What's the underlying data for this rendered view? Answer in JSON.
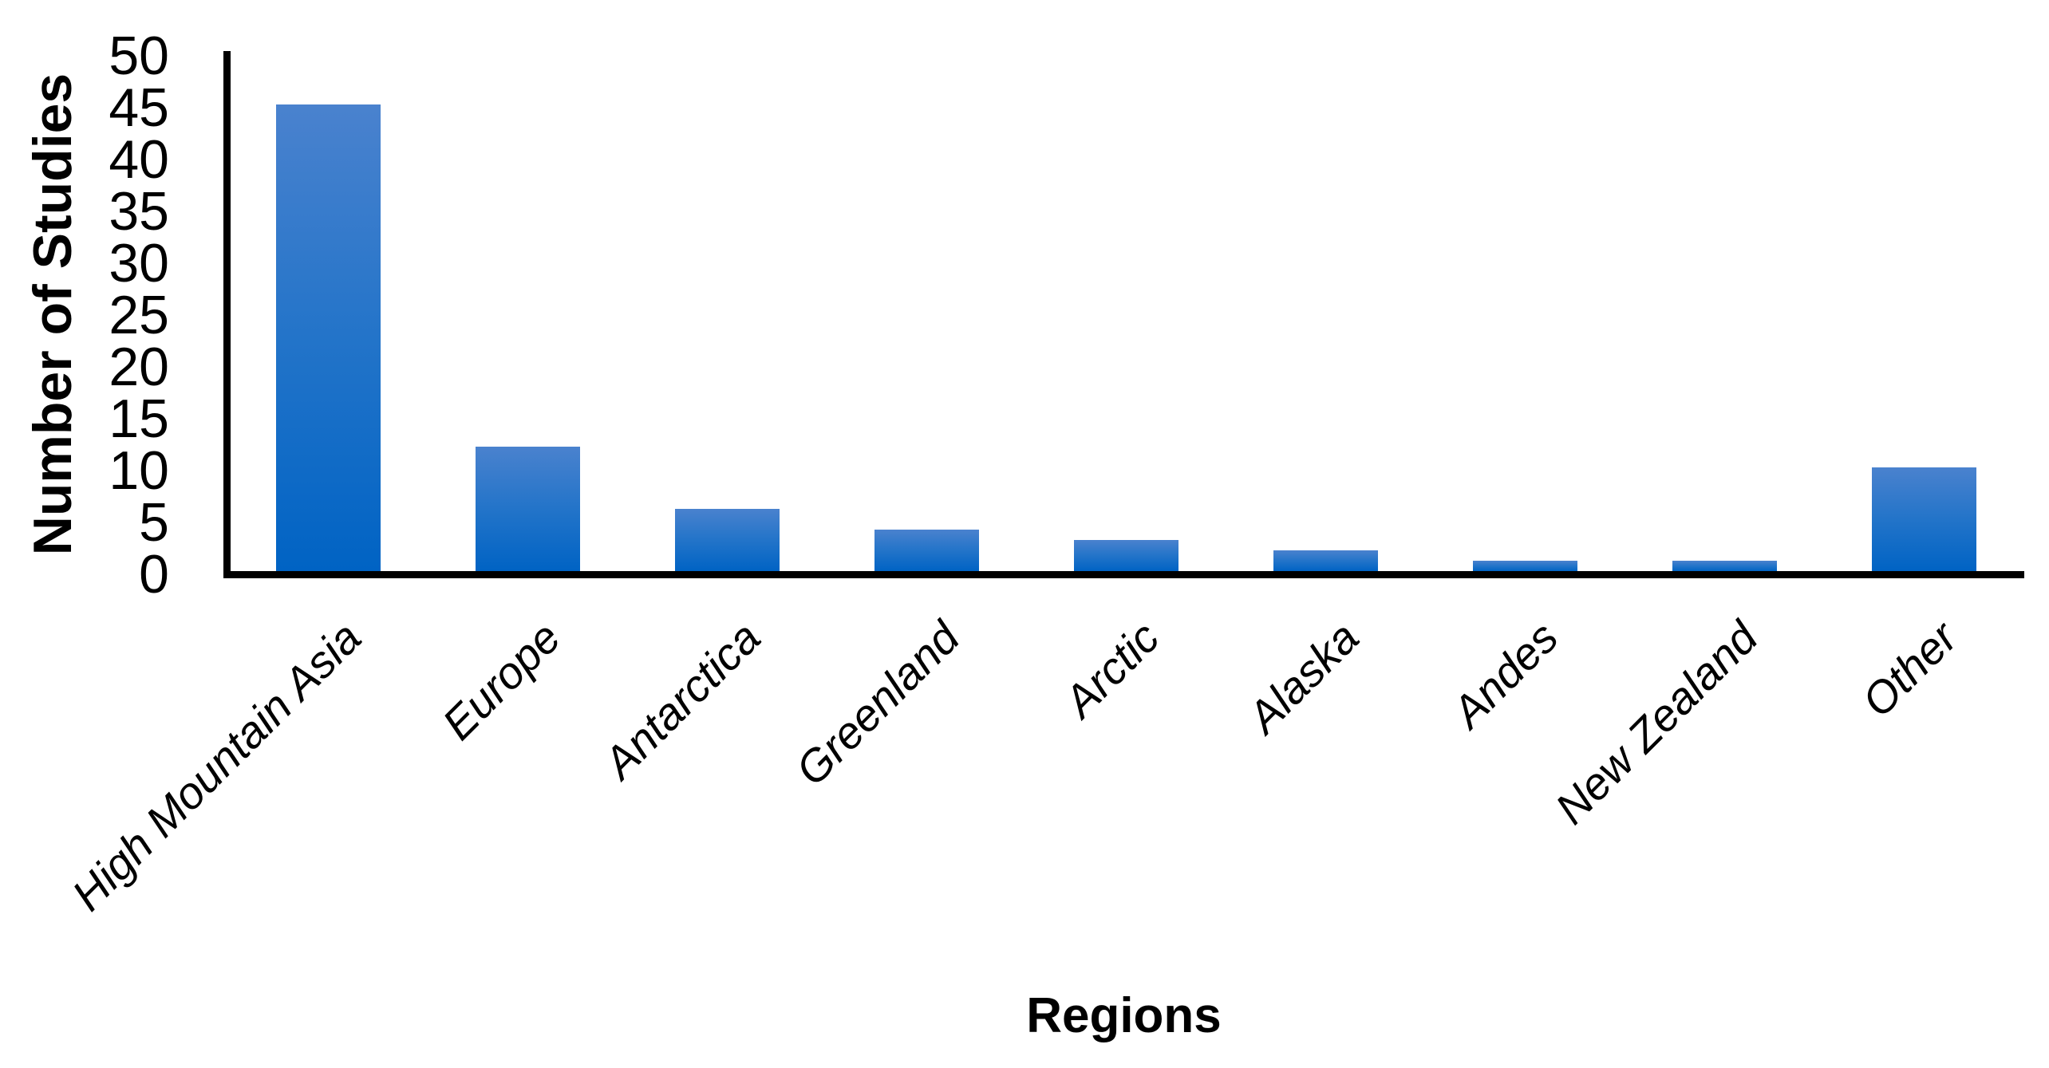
{
  "chart_data": {
    "type": "bar",
    "title": "",
    "categories": [
      "High Mountain Asia",
      "Europe",
      "Antarctica",
      "Greenland",
      "Arctic",
      "Alaska",
      "Andes",
      "New Zealand",
      "Other"
    ],
    "values": [
      45,
      12,
      6,
      4,
      3,
      2,
      1,
      1,
      10
    ],
    "xlabel": "Regions",
    "ylabel": "Number of Studies",
    "ylim": [
      0,
      50
    ],
    "yticks": [
      0,
      5,
      10,
      15,
      20,
      25,
      30,
      35,
      40,
      45,
      50
    ],
    "grid": false,
    "legend": false,
    "bar_color_top": "#4a82ce",
    "bar_color_mid": "#2374c9",
    "bar_color_bottom": "#0063c4",
    "axis_color": "#000000",
    "text_color": "#000000",
    "background_color": "#ffffff"
  }
}
